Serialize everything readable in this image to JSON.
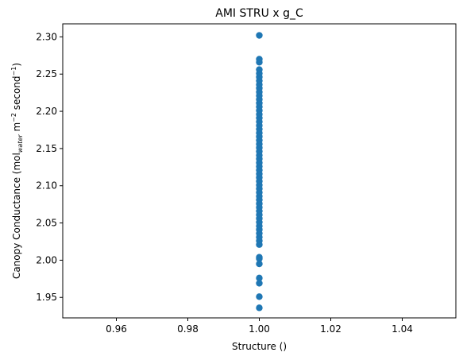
{
  "chart_data": {
    "type": "scatter",
    "title": "AMI STRU x g_C",
    "xlabel": "Structure ()",
    "ylabel": {
      "prefix": "Canopy Conductance (mol",
      "sub": "water",
      "mid": " m",
      "sup1": "−2",
      "mid2": " second",
      "sup2": "−1",
      "suffix": ")"
    },
    "xlim": [
      0.945,
      1.055
    ],
    "ylim": [
      1.9225,
      2.3175
    ],
    "xticks": [
      "0.96",
      "0.98",
      "1.00",
      "1.02",
      "1.04"
    ],
    "xtick_values": [
      0.96,
      0.98,
      1.0,
      1.02,
      1.04
    ],
    "yticks": [
      "1.95",
      "2.00",
      "2.05",
      "2.10",
      "2.15",
      "2.20",
      "2.25",
      "2.30"
    ],
    "ytick_values": [
      1.95,
      2.0,
      2.05,
      2.1,
      2.15,
      2.2,
      2.25,
      2.3
    ],
    "grid": false,
    "marker_color": "#1f77b4",
    "series": [
      {
        "x": 1.0,
        "y": [
          1.936,
          1.951,
          1.969,
          1.976,
          1.995,
          2.002,
          2.004,
          2.021,
          2.026,
          2.031,
          2.036,
          2.041,
          2.046,
          2.051,
          2.056,
          2.061,
          2.066,
          2.071,
          2.076,
          2.081,
          2.086,
          2.091,
          2.096,
          2.101,
          2.106,
          2.111,
          2.116,
          2.121,
          2.126,
          2.131,
          2.136,
          2.141,
          2.146,
          2.151,
          2.156,
          2.161,
          2.166,
          2.171,
          2.176,
          2.181,
          2.186,
          2.191,
          2.196,
          2.201,
          2.206,
          2.211,
          2.216,
          2.221,
          2.226,
          2.231,
          2.236,
          2.241,
          2.246,
          2.251,
          2.256,
          2.266,
          2.27,
          2.302
        ]
      }
    ]
  }
}
